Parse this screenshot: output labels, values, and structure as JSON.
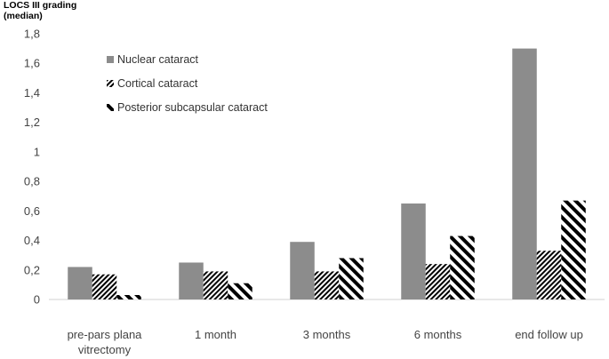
{
  "chart_data": {
    "type": "bar",
    "ylabel": "LOCS III grading\n(median)",
    "categories": [
      "pre-pars plana\nvitrectomy",
      "1 month",
      "3 months",
      "6 months",
      "end follow up"
    ],
    "series": [
      {
        "name": "Nuclear cataract",
        "values": [
          0.22,
          0.25,
          0.39,
          0.65,
          1.7
        ],
        "pattern": "solid",
        "color": "#8c8c8c"
      },
      {
        "name": "Cortical cataract",
        "values": [
          0.17,
          0.19,
          0.19,
          0.24,
          0.33
        ],
        "pattern": "fine-diagonal",
        "color": "#000000"
      },
      {
        "name": "Posterior subcapsular cataract",
        "values": [
          0.03,
          0.11,
          0.28,
          0.43,
          0.67
        ],
        "pattern": "bold-diagonal",
        "color": "#000000"
      }
    ],
    "ylim": [
      0,
      1.8
    ],
    "yticks": [
      "0",
      "0,2",
      "0,4",
      "0,6",
      "0,8",
      "1",
      "1,2",
      "1,4",
      "1,6",
      "1,8"
    ],
    "legend_position": "top-left inside",
    "grid": false
  }
}
